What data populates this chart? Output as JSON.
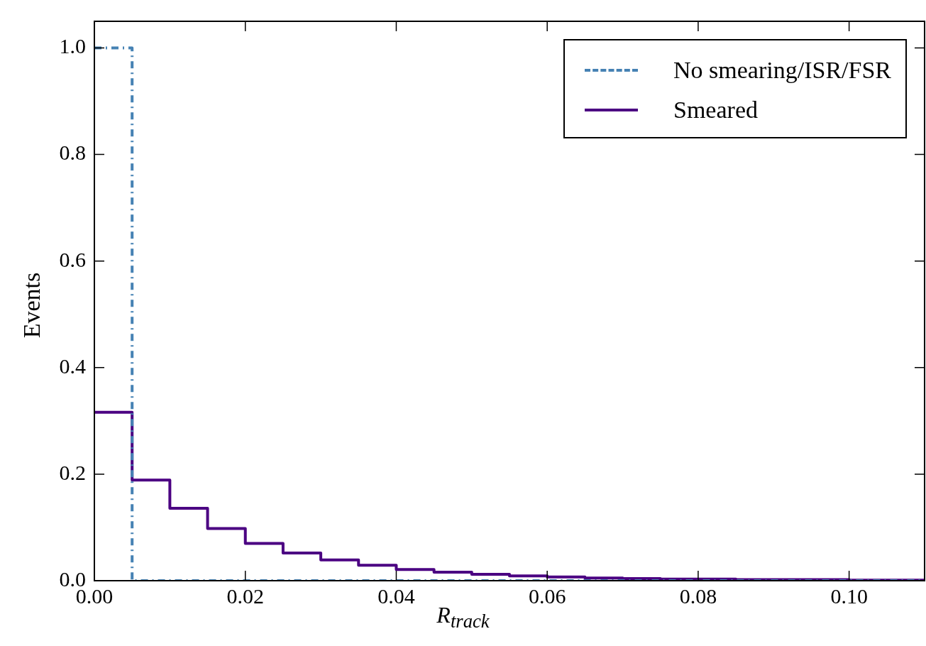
{
  "chart_data": {
    "type": "histogram",
    "xlabel": "R$_{track}$",
    "ylabel": "Events",
    "bins": [
      0,
      0.005,
      0.01,
      0.015,
      0.02,
      0.025,
      0.03,
      0.035,
      0.04,
      0.045,
      0.05,
      0.055,
      0.06,
      0.065,
      0.07,
      0.075,
      0.08,
      0.085,
      0.09,
      0.095,
      0.1,
      0.105,
      0.11
    ],
    "series": [
      {
        "name": "No smearing/ISR/FSR",
        "color": "#4682b4",
        "line_style": "dashed",
        "values": [
          1.0,
          0,
          0,
          0,
          0,
          0,
          0,
          0,
          0,
          0,
          0,
          0,
          0,
          0,
          0,
          0,
          0,
          0,
          0,
          0,
          0,
          0
        ]
      },
      {
        "name": "Smeared",
        "color": "#4b0082",
        "line_style": "solid",
        "values": [
          0.316,
          0.189,
          0.136,
          0.098,
          0.07,
          0.052,
          0.039,
          0.029,
          0.021,
          0.016,
          0.012,
          0.009,
          0.007,
          0.005,
          0.004,
          0.003,
          0.003,
          0.002,
          0.002,
          0.002,
          0.001,
          0.001
        ]
      }
    ],
    "xlim": [
      0,
      0.11
    ],
    "xticks": [
      {
        "value": 0,
        "label": "0.00"
      },
      {
        "value": 0.02,
        "label": "0.02"
      },
      {
        "value": 0.04,
        "label": "0.04"
      },
      {
        "value": 0.06,
        "label": "0.06"
      },
      {
        "value": 0.08,
        "label": "0.08"
      },
      {
        "value": 0.1,
        "label": "0.10"
      }
    ],
    "ylim": [
      0,
      1.05
    ],
    "yticks": [
      {
        "value": 0,
        "label": "0.0"
      },
      {
        "value": 0.2,
        "label": "0.2"
      },
      {
        "value": 0.4,
        "label": "0.4"
      },
      {
        "value": 0.6,
        "label": "0.6"
      },
      {
        "value": 0.8,
        "label": "0.8"
      },
      {
        "value": 1,
        "label": "1.0"
      }
    ],
    "grid": false,
    "legend": "top right"
  }
}
